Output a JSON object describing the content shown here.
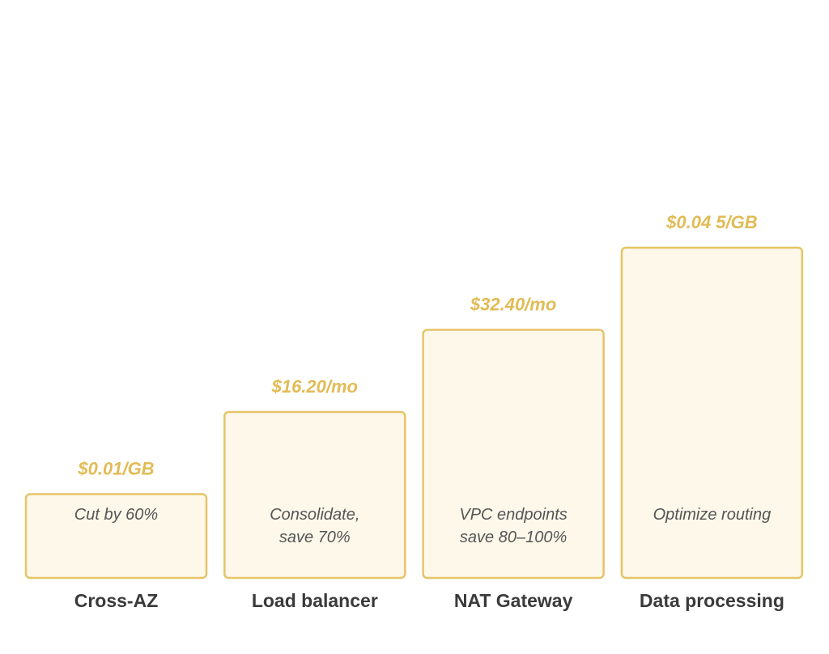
{
  "chart_data": {
    "type": "bar",
    "categories": [
      "Cross-AZ",
      "Load balancer",
      "NAT Gateway",
      "Data processing"
    ],
    "values": [
      1,
      2,
      3,
      4
    ],
    "value_labels": [
      "$0.01/GB",
      "$16.20/mo",
      "$32.40/mo",
      "$0.04 5/GB"
    ],
    "annotations": [
      [
        "Cut by 60%"
      ],
      [
        "Consolidate,",
        "save 70%"
      ],
      [
        "VPC endpoints",
        "save 80–100%"
      ],
      [
        "Optimize routing"
      ]
    ],
    "title": "",
    "xlabel": "",
    "ylabel": "",
    "grid": false,
    "colors": {
      "bar_fill": "#fdf8ea",
      "bar_stroke": "#e6c466",
      "value_label": "#e2bb55",
      "annotation": "#555555",
      "category": "#3a3a3a"
    }
  }
}
